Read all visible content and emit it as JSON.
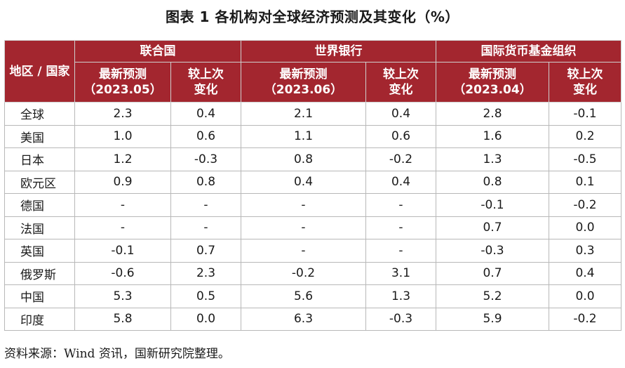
{
  "title": "图表 1 各机构对全球经济预测及其变化（%）",
  "header": {
    "region": "地区 / 国家",
    "groups": [
      "联合国",
      "世界银行",
      "国际货币基金组织"
    ],
    "sub": [
      {
        "l1": "最新预测",
        "l2": "（2023.05）"
      },
      {
        "l1": "较上次",
        "l2": "变化"
      },
      {
        "l1": "最新预测",
        "l2": "（2023.06）"
      },
      {
        "l1": "较上次",
        "l2": "变化"
      },
      {
        "l1": "最新预测",
        "l2": "（2023.04）"
      },
      {
        "l1": "较上次",
        "l2": "变化"
      }
    ]
  },
  "rows": [
    {
      "name": "全球",
      "v": [
        "2.3",
        "0.4",
        "2.1",
        "0.4",
        "2.8",
        "-0.1"
      ]
    },
    {
      "name": "美国",
      "v": [
        "1.0",
        "0.6",
        "1.1",
        "0.6",
        "1.6",
        "0.2"
      ]
    },
    {
      "name": "日本",
      "v": [
        "1.2",
        "-0.3",
        "0.8",
        "-0.2",
        "1.3",
        "-0.5"
      ]
    },
    {
      "name": "欧元区",
      "v": [
        "0.9",
        "0.8",
        "0.4",
        "0.4",
        "0.8",
        "0.1"
      ]
    },
    {
      "name": "德国",
      "v": [
        "-",
        "-",
        "-",
        "-",
        "-0.1",
        "-0.2"
      ]
    },
    {
      "name": "法国",
      "v": [
        "-",
        "-",
        "-",
        "-",
        "0.7",
        "0.0"
      ]
    },
    {
      "name": "英国",
      "v": [
        "-0.1",
        "0.7",
        "-",
        "-",
        "-0.3",
        "0.3"
      ]
    },
    {
      "name": "俄罗斯",
      "v": [
        "-0.6",
        "2.3",
        "-0.2",
        "3.1",
        "0.7",
        "0.4"
      ]
    },
    {
      "name": "中国",
      "v": [
        "5.3",
        "0.5",
        "5.6",
        "1.3",
        "5.2",
        "0.0"
      ]
    },
    {
      "name": "印度",
      "v": [
        "5.8",
        "0.0",
        "6.3",
        "-0.3",
        "5.9",
        "-0.2"
      ]
    }
  ],
  "source": "资料来源：Wind 资讯，国新研究院整理。",
  "colors": {
    "header_bg": "#a3262f",
    "header_text": "#ffffff"
  }
}
